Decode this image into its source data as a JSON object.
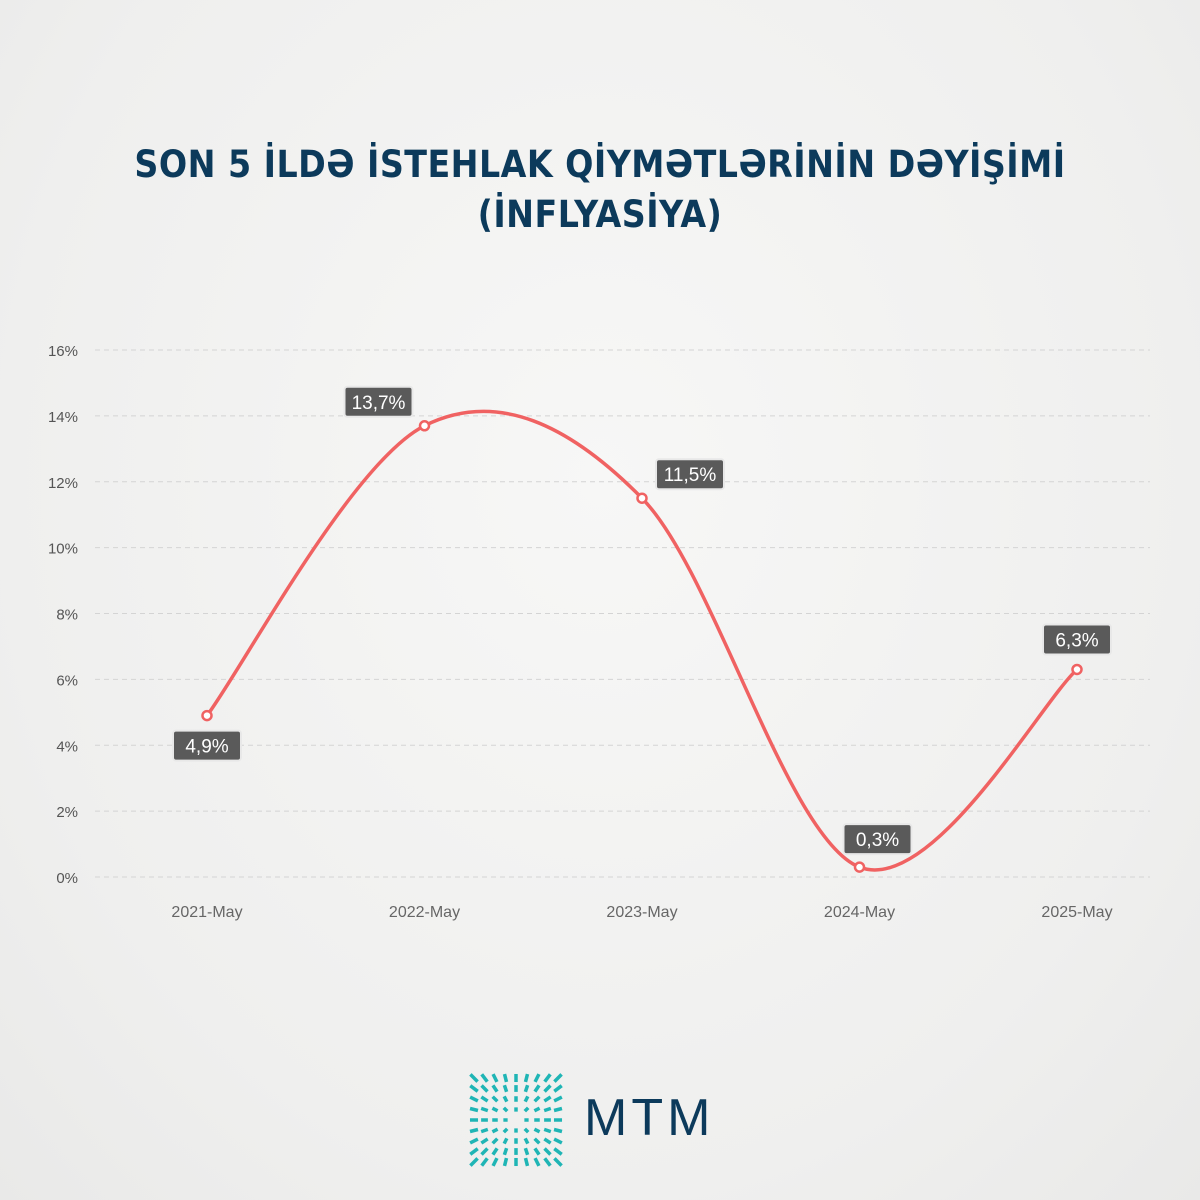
{
  "title_line1": "SON 5 İLDƏ İSTEHLAK QİYMƏTLƏRİNİN DƏYİŞİMİ",
  "title_line2": "(İNFLYASİYA)",
  "logo_text": "MTM",
  "colors": {
    "line": "#f06262",
    "label_bg": "#5a5a5a",
    "title": "#0c3a5b",
    "logo_accent": "#1fb5b5"
  },
  "chart_data": {
    "type": "line",
    "title": "SON 5 İLDƏ İSTEHLAK QİYMƏTLƏRİNİN DƏYİŞİMİ (İNFLYASİYA)",
    "categories": [
      "2021-May",
      "2022-May",
      "2023-May",
      "2024-May",
      "2025-May"
    ],
    "values": [
      4.9,
      13.7,
      11.5,
      0.3,
      6.3
    ],
    "data_labels": [
      "4,9%",
      "13,7%",
      "11,5%",
      "0,3%",
      "6,3%"
    ],
    "yticks": [
      0,
      2,
      4,
      6,
      8,
      10,
      12,
      14,
      16
    ],
    "ytick_labels": [
      "0%",
      "2%",
      "4%",
      "6%",
      "8%",
      "10%",
      "12%",
      "14%",
      "16%"
    ],
    "ylim": [
      0,
      16
    ],
    "grid": true,
    "smooth": true
  }
}
